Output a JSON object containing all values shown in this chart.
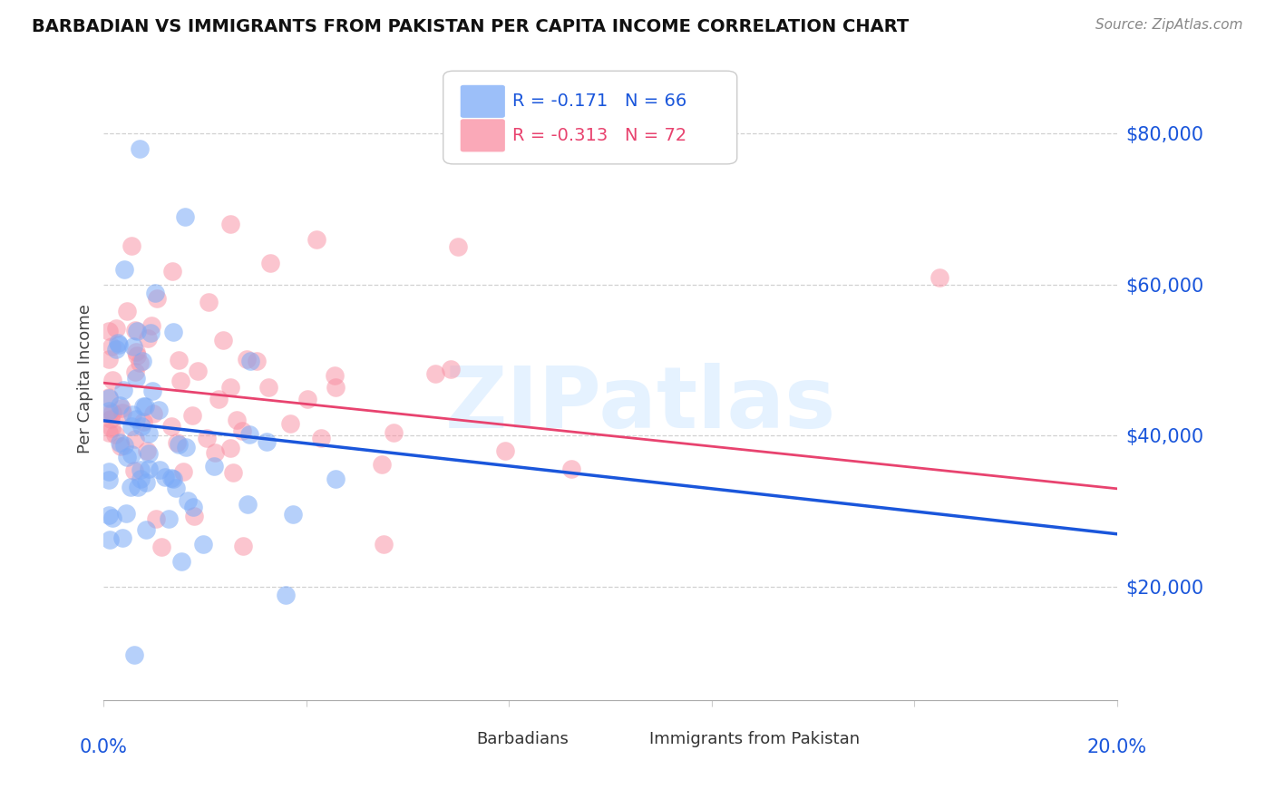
{
  "title": "BARBADIAN VS IMMIGRANTS FROM PAKISTAN PER CAPITA INCOME CORRELATION CHART",
  "source": "Source: ZipAtlas.com",
  "ylabel": "Per Capita Income",
  "ytick_vals": [
    20000,
    40000,
    60000,
    80000
  ],
  "ytick_labels": [
    "$20,000",
    "$40,000",
    "$60,000",
    "$80,000"
  ],
  "xlim": [
    0.0,
    0.2
  ],
  "ylim": [
    5000,
    90000
  ],
  "blue_R": -0.171,
  "blue_N": 66,
  "pink_R": -0.313,
  "pink_N": 72,
  "blue_color": "#7baaf7",
  "pink_color": "#f98da0",
  "blue_line_color": "#1a56db",
  "pink_line_color": "#e8436f",
  "legend_label_blue": "Barbadians",
  "legend_label_pink": "Immigrants from Pakistan",
  "watermark": "ZIPatlas",
  "title_color": "#111111",
  "axis_label_color": "#1a56db",
  "source_color": "#888888",
  "blue_line_x0": 0.0,
  "blue_line_y0": 42000,
  "blue_line_x1": 0.2,
  "blue_line_y1": 27000,
  "pink_line_x0": 0.0,
  "pink_line_y0": 47000,
  "pink_line_x1": 0.2,
  "pink_line_y1": 33000
}
